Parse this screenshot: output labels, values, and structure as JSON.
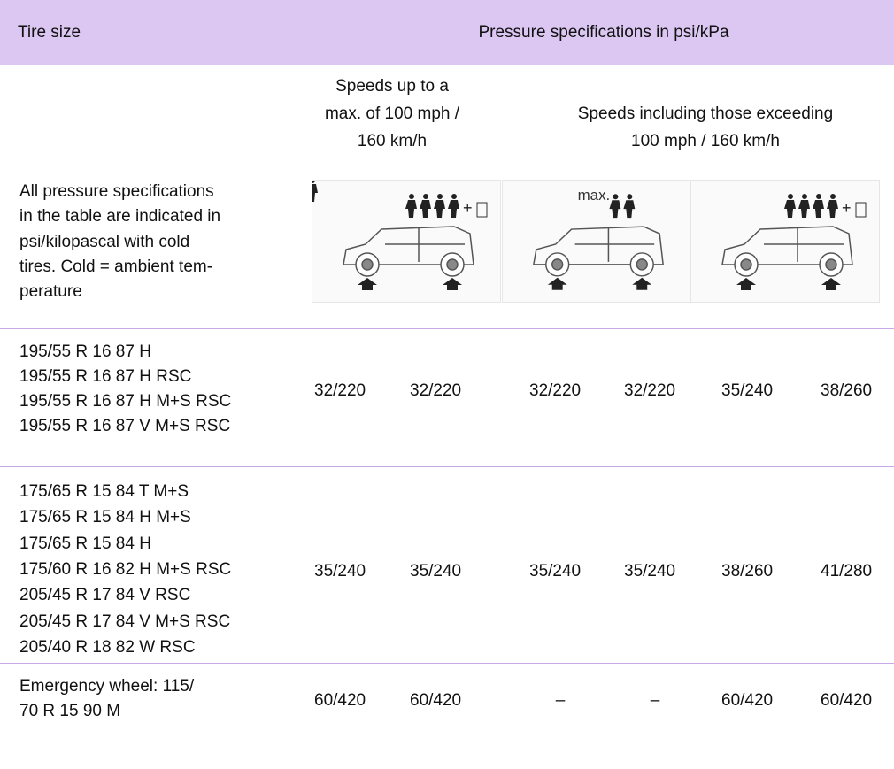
{
  "header": {
    "tire_size": "Tire size",
    "pressure": "Pressure specifications in psi/kPa"
  },
  "speed_headers": [
    [
      "Speeds up to a",
      "max. of 100 mph /",
      "160 km/h"
    ],
    [
      "Speeds including those exceeding",
      "100 mph / 160 km/h"
    ]
  ],
  "note": [
    "All pressure specifications",
    "in the table are indicated in",
    "psi/kilopascal with cold",
    "tires. Cold = ambient tem-",
    "perature"
  ],
  "icon_label": "max.",
  "rows": [
    {
      "tires": [
        "195/55 R 16 87 H",
        "195/55 R 16 87 H RSC",
        "195/55 R 16 87 H M+S RSC",
        "195/55 R 16 87 V M+S RSC"
      ],
      "pressures": [
        "32/220",
        "32/220",
        "32/220",
        "32/220",
        "35/240",
        "38/260"
      ]
    },
    {
      "tires": [
        "175/65 R 15 84 T M+S",
        "175/65 R 15 84 H M+S",
        "175/65 R 15 84 H",
        "175/60 R 16 82 H M+S RSC",
        "205/45 R 17 84 V RSC",
        "205/45 R 17 84 V M+S RSC",
        "205/40 R 18 82 W RSC"
      ],
      "pressures": [
        "35/240",
        "35/240",
        "35/240",
        "35/240",
        "38/260",
        "41/280"
      ]
    },
    {
      "tires": [
        "Emergency wheel: 115/",
        "70 R 15 90 M"
      ],
      "pressures": [
        "60/420",
        "60/420",
        "–",
        "–",
        "60/420",
        "60/420"
      ]
    }
  ]
}
